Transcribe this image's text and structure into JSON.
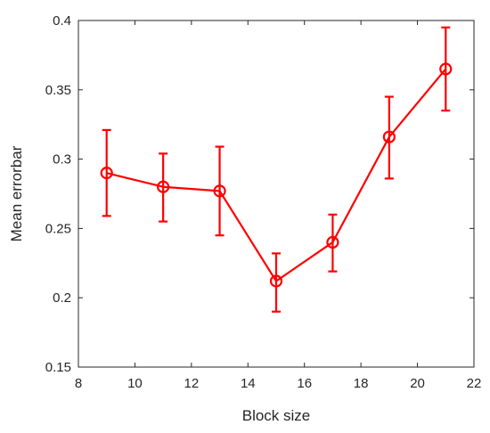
{
  "chart_data": {
    "type": "line",
    "title": "",
    "xlabel": "Block size",
    "ylabel": "Mean errorbar",
    "xlim": [
      8,
      22
    ],
    "ylim": [
      0.15,
      0.4
    ],
    "xticks": [
      8,
      10,
      12,
      14,
      16,
      18,
      20,
      22
    ],
    "yticks": [
      0.15,
      0.2,
      0.25,
      0.3,
      0.35,
      0.4
    ],
    "ytick_labels": [
      "0.15",
      "0.2",
      "0.25",
      "0.3",
      "0.35",
      "0.4"
    ],
    "grid": false,
    "box": true,
    "series": [
      {
        "color": "#ff0000",
        "marker": "circle-open",
        "x": [
          9,
          11,
          13,
          15,
          17,
          19,
          21
        ],
        "y": [
          0.29,
          0.28,
          0.277,
          0.212,
          0.24,
          0.316,
          0.365
        ],
        "error_low": [
          0.259,
          0.255,
          0.245,
          0.19,
          0.219,
          0.286,
          0.335
        ],
        "error_high": [
          0.321,
          0.304,
          0.309,
          0.232,
          0.26,
          0.345,
          0.395
        ]
      }
    ]
  }
}
